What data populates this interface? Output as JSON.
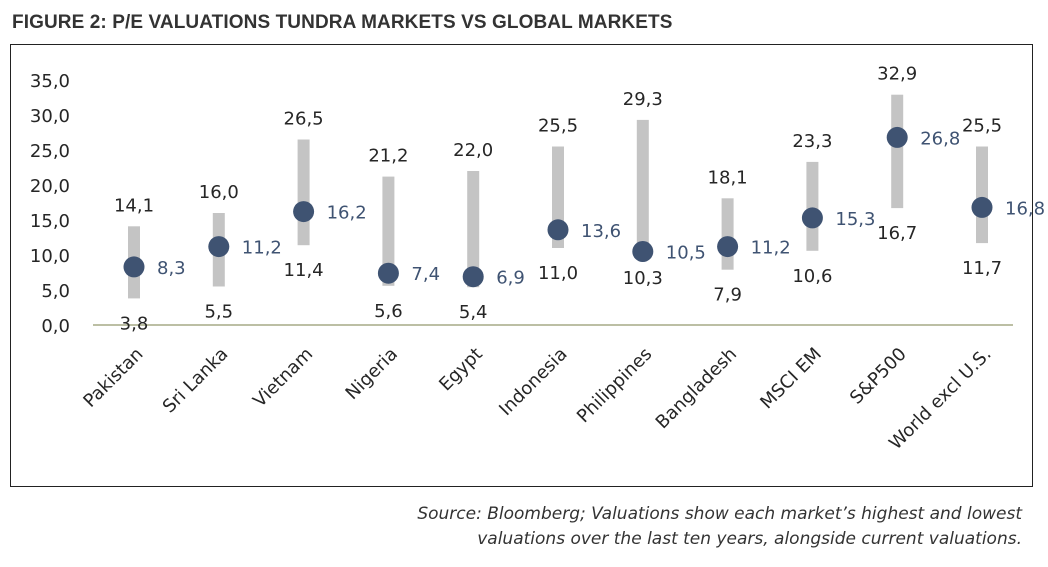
{
  "figure_title": "FIGURE 2: P/E VALUATIONS TUNDRA MARKETS VS GLOBAL MARKETS",
  "source_lines": [
    "Source: Bloomberg; Valuations show each market’s highest and lowest",
    "valuations over the last ten years, alongside current valuations."
  ],
  "colors": {
    "range_bar": "#c4c4c4",
    "current_dot": "#3f5372",
    "baseline": "#a6aa86",
    "text": "#262626",
    "current_label": "#3f5372"
  },
  "chart_data": {
    "type": "range-dot",
    "title": "FIGURE 2: P/E VALUATIONS TUNDRA MARKETS VS GLOBAL MARKETS",
    "categories": [
      "Pakistan",
      "Sri Lanka",
      "Vietnam",
      "Nigeria",
      "Egypt",
      "Indonesia",
      "Philippines",
      "Bangladesh",
      "MSCI EM",
      "S&P500",
      "World excl U.S."
    ],
    "high": [
      14.1,
      16.0,
      26.5,
      21.2,
      22.0,
      25.5,
      29.3,
      18.1,
      23.3,
      32.9,
      25.5
    ],
    "low": [
      3.8,
      5.5,
      11.4,
      5.6,
      5.4,
      11.0,
      10.3,
      7.9,
      10.6,
      16.7,
      11.7
    ],
    "current": [
      8.3,
      11.2,
      16.2,
      7.4,
      6.9,
      13.6,
      10.5,
      11.2,
      15.3,
      26.8,
      16.8
    ],
    "high_labels": [
      "14,1",
      "16,0",
      "26,5",
      "21,2",
      "22,0",
      "25,5",
      "29,3",
      "18,1",
      "23,3",
      "32,9",
      "25,5"
    ],
    "low_labels": [
      "3,8",
      "5,5",
      "11,4",
      "5,6",
      "5,4",
      "11,0",
      "10,3",
      "7,9",
      "10,6",
      "16,7",
      "11,7"
    ],
    "current_labels": [
      "8,3",
      "11,2",
      "16,2",
      "7,4",
      "6,9",
      "13,6",
      "10,5",
      "11,2",
      "15,3",
      "26,8",
      "16,8"
    ],
    "y_ticks": [
      0,
      5,
      10,
      15,
      20,
      25,
      30,
      35
    ],
    "y_tick_labels": [
      "0,0",
      "5,0",
      "10,0",
      "15,0",
      "20,0",
      "25,0",
      "30,0",
      "35,0"
    ],
    "ylim": [
      0,
      35
    ],
    "grid": false,
    "legend": "none"
  }
}
